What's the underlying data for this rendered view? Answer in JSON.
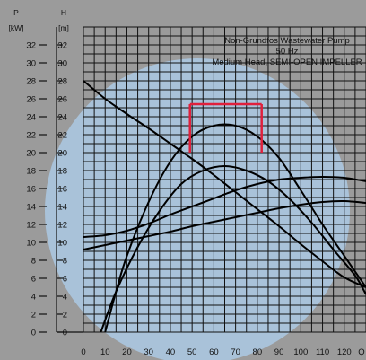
{
  "chart_data": {
    "type": "line",
    "title_lines": [
      "Non-Grundfos Wastewater Pump",
      "50 Hz",
      "Medium Head, SEMI-OPEN IMPELLER"
    ],
    "p_axis": {
      "symbol": "P",
      "unit": "[kW]",
      "range": [
        0,
        34
      ],
      "ticks": [
        0,
        2,
        4,
        6,
        8,
        10,
        12,
        14,
        16,
        18,
        20,
        22,
        24,
        26,
        28,
        30,
        32
      ]
    },
    "h_axis": {
      "symbol": "H",
      "unit": "[m]",
      "range": [
        0,
        34
      ],
      "ticks": [
        0,
        2,
        4,
        6,
        8,
        10,
        12,
        14,
        16,
        18,
        20,
        22,
        24,
        26,
        28,
        30,
        32
      ]
    },
    "x_axis": {
      "label": "Q",
      "range": [
        0,
        130
      ],
      "ticks": [
        0,
        10,
        20,
        30,
        40,
        50,
        60,
        70,
        80,
        90,
        100,
        110,
        120
      ]
    },
    "grid": true,
    "series": [
      {
        "points": [
          [
            0,
            28
          ],
          [
            10,
            26
          ],
          [
            20,
            24.3
          ],
          [
            30,
            22.7
          ],
          [
            40,
            21
          ],
          [
            50,
            19.3
          ],
          [
            60,
            17.5
          ],
          [
            70,
            15.6
          ],
          [
            80,
            13.7
          ],
          [
            90,
            11.8
          ],
          [
            100,
            9.8
          ],
          [
            110,
            7.9
          ],
          [
            120,
            6.1
          ],
          [
            130,
            5
          ]
        ]
      },
      {
        "points": [
          [
            10,
            0
          ],
          [
            15,
            4.5
          ],
          [
            20,
            8.5
          ],
          [
            30,
            14.5
          ],
          [
            40,
            19
          ],
          [
            50,
            21.8
          ],
          [
            60,
            23
          ],
          [
            70,
            23
          ],
          [
            80,
            21.8
          ],
          [
            90,
            19.4
          ],
          [
            100,
            15.8
          ],
          [
            110,
            12
          ],
          [
            120,
            8.5
          ],
          [
            130,
            5
          ]
        ]
      },
      {
        "points": [
          [
            8,
            0
          ],
          [
            15,
            4.5
          ],
          [
            25,
            9.5
          ],
          [
            35,
            13.5
          ],
          [
            45,
            16.5
          ],
          [
            55,
            18
          ],
          [
            65,
            18.5
          ],
          [
            75,
            18
          ],
          [
            85,
            16.8
          ],
          [
            95,
            14.8
          ],
          [
            105,
            12.2
          ],
          [
            115,
            9.2
          ],
          [
            125,
            6.3
          ],
          [
            130,
            4.2
          ]
        ]
      },
      {
        "points": [
          [
            0,
            10.6
          ],
          [
            10,
            10.8
          ],
          [
            20,
            11.3
          ],
          [
            30,
            12.1
          ],
          [
            40,
            13.1
          ],
          [
            50,
            14
          ],
          [
            60,
            14.9
          ],
          [
            70,
            15.8
          ],
          [
            80,
            16.5
          ],
          [
            90,
            17
          ],
          [
            100,
            17.2
          ],
          [
            110,
            17.3
          ],
          [
            120,
            17.2
          ],
          [
            130,
            16.8
          ]
        ]
      },
      {
        "points": [
          [
            0,
            9.2
          ],
          [
            10,
            9.7
          ],
          [
            20,
            10.2
          ],
          [
            30,
            10.7
          ],
          [
            40,
            11.2
          ],
          [
            50,
            11.8
          ],
          [
            60,
            12.3
          ],
          [
            70,
            12.8
          ],
          [
            80,
            13.3
          ],
          [
            90,
            13.8
          ],
          [
            100,
            14.2
          ],
          [
            110,
            14.5
          ],
          [
            120,
            14.6
          ],
          [
            130,
            14.4
          ]
        ]
      }
    ],
    "bracket": {
      "x": [
        49,
        82
      ],
      "y": 25.4,
      "y_bottom": 20,
      "color": "#e0203c"
    },
    "colors": {
      "background": "#9b9b9b",
      "circle": "#a9c2d9",
      "grid": "#111111",
      "curves": "#000000"
    }
  }
}
